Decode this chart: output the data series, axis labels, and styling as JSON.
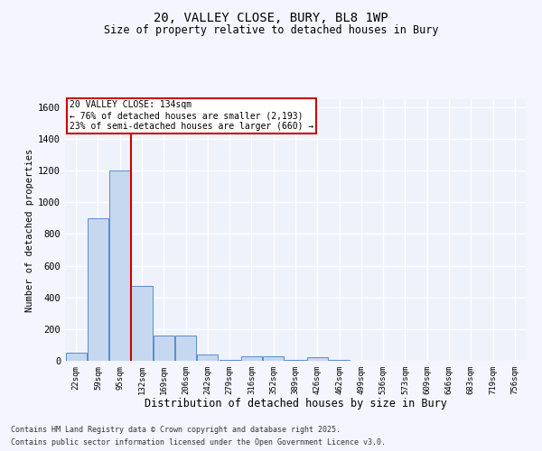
{
  "title1": "20, VALLEY CLOSE, BURY, BL8 1WP",
  "title2": "Size of property relative to detached houses in Bury",
  "xlabel": "Distribution of detached houses by size in Bury",
  "ylabel": "Number of detached properties",
  "categories": [
    "22sqm",
    "59sqm",
    "95sqm",
    "132sqm",
    "169sqm",
    "206sqm",
    "242sqm",
    "279sqm",
    "316sqm",
    "352sqm",
    "389sqm",
    "426sqm",
    "462sqm",
    "499sqm",
    "536sqm",
    "573sqm",
    "609sqm",
    "646sqm",
    "683sqm",
    "719sqm",
    "756sqm"
  ],
  "values": [
    50,
    900,
    1200,
    470,
    160,
    160,
    40,
    5,
    30,
    30,
    5,
    20,
    5,
    0,
    0,
    0,
    0,
    0,
    0,
    0,
    0
  ],
  "bar_color": "#c5d8f0",
  "bar_edge_color": "#5b8bd0",
  "background_color": "#eef2fb",
  "grid_color": "#d8e0f0",
  "vline_color": "#cc0000",
  "annotation_text": "20 VALLEY CLOSE: 134sqm\n← 76% of detached houses are smaller (2,193)\n23% of semi-detached houses are larger (660) →",
  "annotation_box_facecolor": "#ffffff",
  "annotation_box_edgecolor": "#cc0000",
  "ylim": [
    0,
    1650
  ],
  "yticks": [
    0,
    200,
    400,
    600,
    800,
    1000,
    1200,
    1400,
    1600
  ],
  "footer1": "Contains HM Land Registry data © Crown copyright and database right 2025.",
  "footer2": "Contains public sector information licensed under the Open Government Licence v3.0."
}
